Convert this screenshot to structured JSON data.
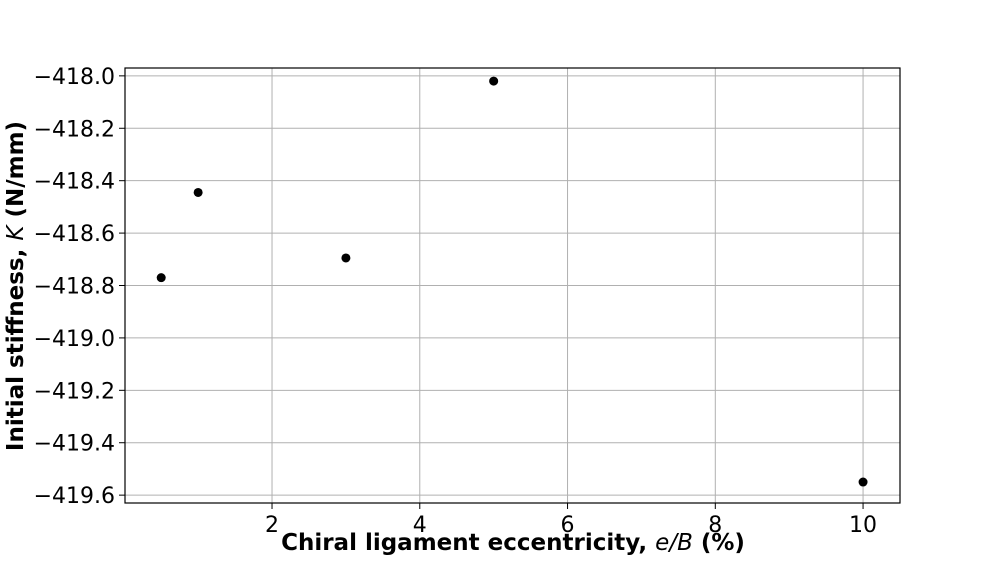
{
  "chart_data": {
    "type": "scatter",
    "title": "",
    "xlabel": {
      "prefix": "Chiral ligament eccentricity, ",
      "math": "e/B",
      "suffix": " (%)"
    },
    "ylabel": {
      "prefix": "Initial stiffness, ",
      "math": "K",
      "suffix": " (N/mm)"
    },
    "xlim": [
      0.01,
      10.5
    ],
    "ylim": [
      -419.63,
      -417.97
    ],
    "xticks": [
      2,
      4,
      6,
      8,
      10
    ],
    "xtick_labels": [
      "2",
      "4",
      "6",
      "8",
      "10"
    ],
    "yticks": [
      -418.0,
      -418.2,
      -418.4,
      -418.6,
      -418.8,
      -419.0,
      -419.2,
      -419.4,
      -419.6
    ],
    "ytick_labels": [
      "−418.0",
      "−418.2",
      "−418.4",
      "−418.6",
      "−418.8",
      "−419.0",
      "−419.2",
      "−419.4",
      "−419.6"
    ],
    "grid": true,
    "legend": false,
    "series": [
      {
        "color": "#000000",
        "marker": "circle",
        "points": [
          {
            "x": 0.5,
            "y": -418.77
          },
          {
            "x": 1.0,
            "y": -418.445
          },
          {
            "x": 3.0,
            "y": -418.695
          },
          {
            "x": 5.0,
            "y": -418.02
          },
          {
            "x": 10.0,
            "y": -419.55
          }
        ]
      }
    ]
  }
}
